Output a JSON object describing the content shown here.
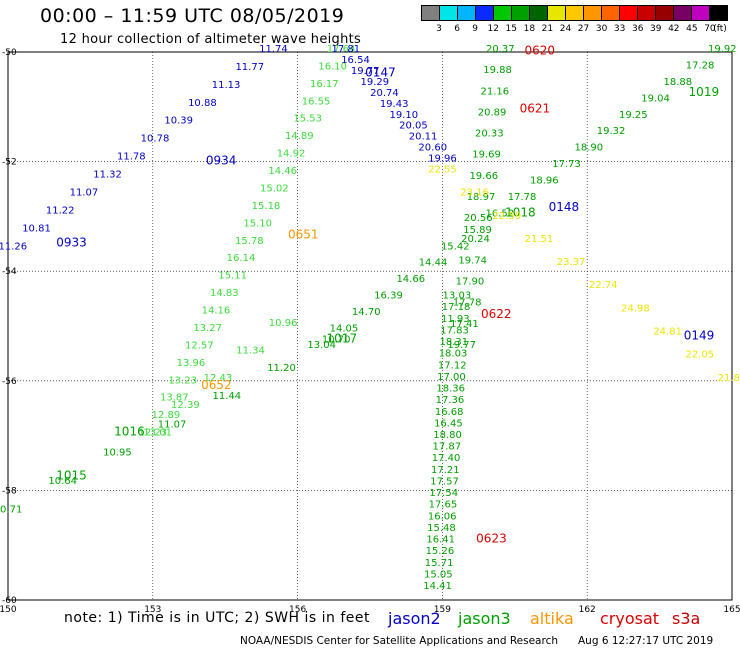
{
  "header": {
    "title": "00:00 – 11:59 UTC 08/05/2019",
    "subtitle": "12 hour collection of altimeter wave heights"
  },
  "colorbar": {
    "colors": [
      "#808080",
      "#00e5e5",
      "#00b4ff",
      "#0a2aff",
      "#00c800",
      "#00a000",
      "#006400",
      "#e6e600",
      "#ffc800",
      "#ff9600",
      "#ff6400",
      "#ff0000",
      "#c80000",
      "#960000",
      "#780064",
      "#c000c0",
      "#000000"
    ],
    "labels": [
      "3",
      "6",
      "9",
      "12",
      "15",
      "18",
      "21",
      "24",
      "27",
      "30",
      "33",
      "36",
      "39",
      "42",
      "45",
      "70"
    ],
    "unit": "(ft)"
  },
  "axes": {
    "x_ticks": [
      "150",
      "153",
      "156",
      "159",
      "162",
      "165"
    ],
    "y_ticks": [
      "-50",
      "-52",
      "-54",
      "-56",
      "-58",
      "-60"
    ]
  },
  "map_data": {
    "lon_range": [
      150,
      165
    ],
    "lat_range": [
      -60,
      -50
    ],
    "passes": [
      {
        "id": "0933",
        "satellite": "jason2",
        "color": "#0000c8",
        "label_color": "#0000c8",
        "start": [
          150.1,
          -53.6
        ],
        "end": [
          155.5,
          -50.0
        ],
        "values": [
          "11.26",
          "10.81",
          "11.22",
          "11.07",
          "11.32",
          "11.78",
          "10.78",
          "10.39",
          "10.88",
          "11.13",
          "11.77",
          "11.74"
        ],
        "labels": [
          {
            "text": "0933",
            "at": [
              151.0,
              -53.55
            ]
          },
          {
            "text": "0934",
            "at": [
              154.1,
              -52.05
            ]
          }
        ]
      },
      {
        "id": "0651",
        "satellite": "jason3",
        "color": "#3cdc3c",
        "label_color": "#ff9600",
        "start": [
          153.1,
          -57.0
        ],
        "end": [
          156.9,
          -50.0
        ],
        "values": [
          "13.01",
          "12.89",
          "13.87",
          "13.23",
          "13.96",
          "12.57",
          "13.27",
          "14.16",
          "14.83",
          "15.11",
          "16.14",
          "15.78",
          "15.10",
          "15.18",
          "15.02",
          "14.46",
          "14.92",
          "14.89",
          "15.53",
          "16.55",
          "16.17",
          "16.10",
          "17.64"
        ],
        "labels": [
          {
            "text": "0651",
            "at": [
              155.8,
              -53.4
            ]
          }
        ]
      },
      {
        "id": "0652",
        "satellite": "altika",
        "color": "#3cdc3c",
        "label_color": "#ff9600",
        "start": [
          153.0,
          -57.0
        ],
        "end": [
          155.7,
          -55.0
        ],
        "values": [
          "12.23",
          "12.39",
          "12.43",
          "11.34",
          "10.96"
        ],
        "labels": [
          {
            "text": "0652",
            "at": [
              154.0,
              -56.15
            ]
          }
        ]
      },
      {
        "id": "1016",
        "satellite": "jason3",
        "color": "#00a000",
        "label_color": "#00a000",
        "start": [
          150.0,
          -58.4
        ],
        "end": [
          156.8,
          -55.3
        ],
        "values": [
          "10.71",
          "10.64",
          "10.95",
          "11.07",
          "11.44",
          "11.20",
          "10.70"
        ],
        "labels": [
          {
            "text": "1016",
            "at": [
              152.2,
              -57.0
            ]
          },
          {
            "text": "1015",
            "at": [
              151.0,
              -57.8
            ]
          },
          {
            "text": "1017",
            "at": [
              156.6,
              -55.3
            ]
          }
        ]
      },
      {
        "id": "0147",
        "satellite": "jason2",
        "color": "#0000c8",
        "label_color": "#0000c8",
        "start": [
          157.0,
          -50.0
        ],
        "end": [
          159.0,
          -52.0
        ],
        "values": [
          "17.81",
          "16.54",
          "19.77",
          "19.29",
          "20.74",
          "19.43",
          "19.10",
          "20.05",
          "20.11",
          "20.60",
          "19.96"
        ],
        "labels": [
          {
            "text": "0147",
            "at": [
              157.4,
              -50.45
            ]
          },
          {
            "text": "0148",
            "at": [
              161.2,
              -52.9
            ]
          },
          {
            "text": "0149",
            "at": [
              164.0,
              -55.25
            ]
          }
        ]
      },
      {
        "id": "0620",
        "satellite": "cryosat",
        "color": "#00a000",
        "label_color": "#dc0000",
        "start": [
          160.2,
          -50.0
        ],
        "end": [
          159.4,
          -55.4
        ],
        "values": [
          "20.37",
          "19.88",
          "21.16",
          "20.89",
          "20.33",
          "19.69",
          "19.66",
          "18.97",
          "20.56",
          "20.24",
          "19.74",
          "17.90",
          "17.78",
          "17.41",
          "19.77"
        ],
        "labels": [
          {
            "text": "0620",
            "at": [
              160.7,
              -50.05
            ]
          },
          {
            "text": "0621",
            "at": [
              160.6,
              -51.1
            ]
          },
          {
            "text": "0622",
            "at": [
              159.8,
              -54.85
            ]
          },
          {
            "text": "0623",
            "at": [
              159.7,
              -58.95
            ]
          }
        ]
      },
      {
        "id": "0623",
        "satellite": "jason3",
        "color": "#00a000",
        "label_color": "#00a000",
        "start": [
          159.3,
          -54.5
        ],
        "end": [
          158.9,
          -59.8
        ],
        "values": [
          "13.03",
          "17.18",
          "11.93",
          "17.83",
          "18.31",
          "18.03",
          "17.12",
          "17.00",
          "18.36",
          "17.36",
          "16.68",
          "16.45",
          "18.80",
          "17.87",
          "17.40",
          "17.21",
          "17.57",
          "17.54",
          "17.65",
          "16.06",
          "15.48",
          "16.41",
          "15.26",
          "15.71",
          "15.05",
          "14.41"
        ],
        "labels": []
      },
      {
        "id": "1018",
        "satellite": "jason3",
        "color": "#00a000",
        "label_color": "#00a000",
        "start": [
          156.5,
          -55.4
        ],
        "end": [
          164.8,
          -50.0
        ],
        "values": [
          "13.04",
          "14.05",
          "14.70",
          "16.39",
          "14.66",
          "14.44",
          "15.42",
          "15.89",
          "16.52",
          "17.78",
          "18.96",
          "17.73",
          "18.90",
          "19.32",
          "19.25",
          "19.04",
          "18.88",
          "17.28",
          "19.92"
        ],
        "labels": [
          {
            "text": "1018",
            "at": [
              160.3,
              -53.0
            ]
          },
          {
            "text": "1019",
            "at": [
              164.1,
              -50.8
            ]
          }
        ]
      },
      {
        "id": "s3a",
        "satellite": "altika",
        "color": "#f0e600",
        "label_color": "#f0e600",
        "start": [
          159.0,
          -52.2
        ],
        "end": [
          165.0,
          -56.0
        ],
        "values": [
          "22.55",
          "23.16",
          "22.59",
          "21.51",
          "23.37",
          "22.74",
          "24.98",
          "24.81",
          "22.05",
          "21.88"
        ],
        "labels": []
      }
    ],
    "legend": [
      {
        "name": "jason2",
        "color": "#0000c8"
      },
      {
        "name": "jason3",
        "color": "#00a000"
      },
      {
        "name": "altika",
        "color": "#ff9600"
      },
      {
        "name": "cryosat",
        "color": "#dc0000"
      },
      {
        "name": "s3a",
        "color": "#c80000"
      }
    ]
  },
  "footer": {
    "note": "note:  1) Time is in UTC;  2) SWH is in feet",
    "credit": "NOAA/NESDIS Center for Satellite Applications and Research",
    "date": "Aug  6 12:27:17 UTC 2019"
  }
}
